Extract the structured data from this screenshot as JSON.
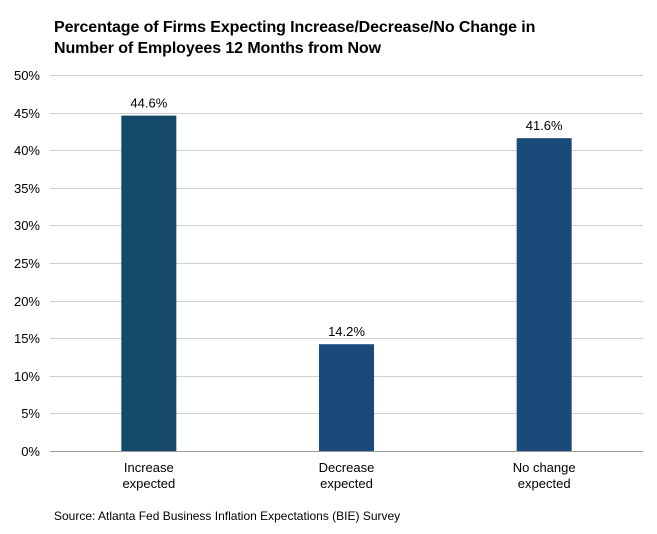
{
  "title": {
    "line1": "Percentage of Firms Expecting Increase/Decrease/No Change in",
    "line2": "Number of Employees 12 Months from Now"
  },
  "source": "Source: Atlanta Fed Business Inflation Expectations (BIE) Survey",
  "chart_data": {
    "type": "bar",
    "categories": [
      "Increase expected",
      "Decrease expected",
      "No change expected"
    ],
    "category_lines": [
      [
        "Increase",
        "expected"
      ],
      [
        "Decrease",
        "expected"
      ],
      [
        "No change",
        "expected"
      ]
    ],
    "values": [
      44.6,
      14.2,
      41.6
    ],
    "data_labels": [
      "44.6%",
      "14.2%",
      "41.6%"
    ],
    "bar_colors": [
      "#15496a",
      "#1a4a7a",
      "#1a4a7a"
    ],
    "ylim": [
      0,
      50
    ],
    "yticks": [
      0,
      5,
      10,
      15,
      20,
      25,
      30,
      35,
      40,
      45,
      50
    ],
    "ytick_labels": [
      "0%",
      "5%",
      "10%",
      "15%",
      "20%",
      "25%",
      "30%",
      "35%",
      "40%",
      "45%",
      "50%"
    ],
    "grid": true,
    "gridline_color": "#d0d0d0",
    "title": "Percentage of Firms Expecting Increase/Decrease/No Change in Number of Employees 12 Months from Now",
    "xlabel": "",
    "ylabel": ""
  }
}
